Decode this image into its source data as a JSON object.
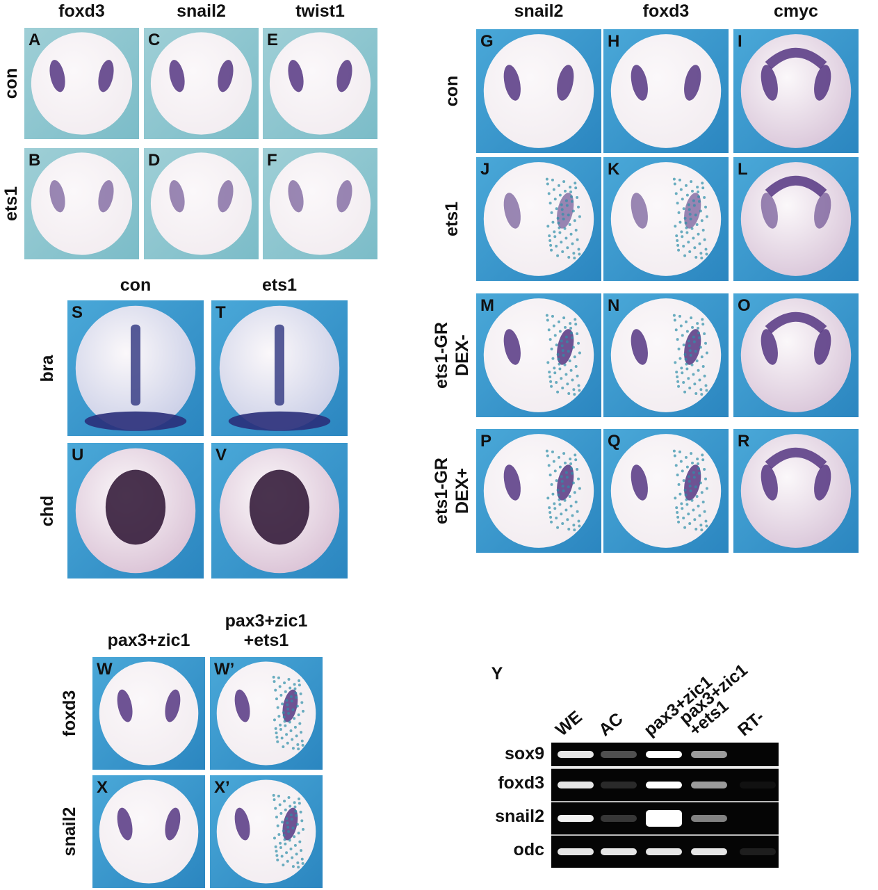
{
  "figure": {
    "groups": [
      {
        "columns": [
          "foxd3",
          "snail2",
          "twist1"
        ],
        "rows": [
          "con",
          "ets1"
        ],
        "panels": [
          [
            "A",
            "C",
            "E"
          ],
          [
            "B",
            "D",
            "F"
          ]
        ]
      },
      {
        "columns": [
          "snail2",
          "foxd3",
          "cmyc"
        ],
        "rows": [
          "con",
          "ets1",
          "ets1-GR\nDEX-",
          "ets1-GR\nDEX+"
        ],
        "panels": [
          [
            "G",
            "H",
            "I"
          ],
          [
            "J",
            "K",
            "L"
          ],
          [
            "M",
            "N",
            "O"
          ],
          [
            "P",
            "Q",
            "R"
          ]
        ]
      },
      {
        "columns": [
          "con",
          "ets1"
        ],
        "rows": [
          "bra",
          "chd"
        ],
        "panels": [
          [
            "S",
            "T"
          ],
          [
            "U",
            "V"
          ]
        ]
      },
      {
        "columns": [
          "pax3+zic1",
          "pax3+zic1\n+ets1"
        ],
        "rows": [
          "foxd3",
          "snail2"
        ],
        "panels": [
          [
            "W",
            "W’"
          ],
          [
            "X",
            "X’"
          ]
        ]
      }
    ],
    "gel": {
      "label": "Y",
      "lanes": [
        "WE",
        "AC",
        "pax3+zic1",
        "pax3+zic1\n+ets1",
        "RT-"
      ],
      "genes": [
        "sox9",
        "foxd3",
        "snail2",
        "odc"
      ]
    }
  }
}
